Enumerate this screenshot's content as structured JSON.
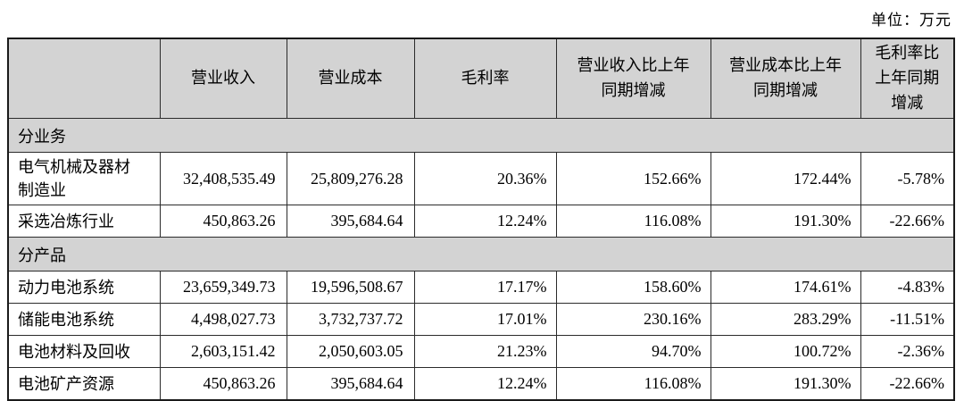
{
  "unit_label": "单位：万元",
  "table": {
    "columns": [
      "",
      "营业收入",
      "营业成本",
      "毛利率",
      "营业收入比上年\n同期增减",
      "营业成本比上年\n同期增减",
      "毛利率比\n上年同期\n增减"
    ],
    "rows": [
      {
        "type": "section",
        "label": "分业务"
      },
      {
        "type": "data",
        "label": "电气机械及器材\n制造业",
        "values": [
          "32,408,535.49",
          "25,809,276.28",
          "20.36%",
          "152.66%",
          "172.44%",
          "-5.78%"
        ]
      },
      {
        "type": "data",
        "label": "采选冶炼行业",
        "values": [
          "450,863.26",
          "395,684.64",
          "12.24%",
          "116.08%",
          "191.30%",
          "-22.66%"
        ]
      },
      {
        "type": "section",
        "label": "分产品"
      },
      {
        "type": "data",
        "label": "动力电池系统",
        "values": [
          "23,659,349.73",
          "19,596,508.67",
          "17.17%",
          "158.60%",
          "174.61%",
          "-4.83%"
        ]
      },
      {
        "type": "data",
        "label": "储能电池系统",
        "values": [
          "4,498,027.73",
          "3,732,737.72",
          "17.01%",
          "230.16%",
          "283.29%",
          "-11.51%"
        ]
      },
      {
        "type": "data",
        "label": "电池材料及回收",
        "values": [
          "2,603,151.42",
          "2,050,603.05",
          "21.23%",
          "94.70%",
          "100.72%",
          "-2.36%"
        ]
      },
      {
        "type": "data",
        "label": "电池矿产资源",
        "values": [
          "450,863.26",
          "395,684.64",
          "12.24%",
          "116.08%",
          "191.30%",
          "-22.66%"
        ]
      }
    ]
  }
}
